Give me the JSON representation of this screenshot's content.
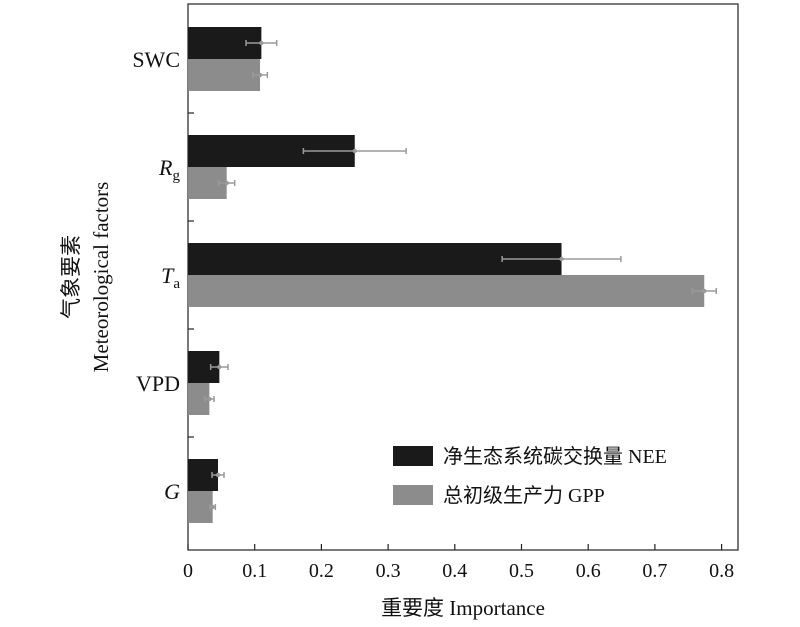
{
  "chart_data": {
    "type": "bar",
    "orientation": "horizontal",
    "categories": [
      {
        "main": "SWC",
        "sub": "",
        "italic": false
      },
      {
        "main": "R",
        "sub": "g",
        "italic": true
      },
      {
        "main": "T",
        "sub": "a",
        "italic": true
      },
      {
        "main": "VPD",
        "sub": "",
        "italic": false
      },
      {
        "main": "G",
        "sub": "",
        "italic": true
      }
    ],
    "series": [
      {
        "name": "净生态系统碳交换量 NEE",
        "color": "#1a1a1a",
        "values": [
          0.11,
          0.25,
          0.56,
          0.047,
          0.045
        ],
        "errors": [
          0.023,
          0.077,
          0.089,
          0.013,
          0.009
        ]
      },
      {
        "name": "总初级生产力 GPP",
        "color": "#8c8c8c",
        "values": [
          0.108,
          0.058,
          0.774,
          0.032,
          0.037
        ],
        "errors": [
          0.011,
          0.012,
          0.018,
          0.007,
          0.004
        ]
      }
    ],
    "xlim": [
      0,
      0.82
    ],
    "xticks": [
      "0",
      "0.1",
      "0.2",
      "0.3",
      "0.4",
      "0.5",
      "0.6",
      "0.7",
      "0.8"
    ],
    "xlabel": "重要度 Importance",
    "ylabel_cn": "气象要素",
    "ylabel_en": "Meteorological factors",
    "legend_position": "bottom-right",
    "errorbar_color": "#9a9a9a"
  }
}
